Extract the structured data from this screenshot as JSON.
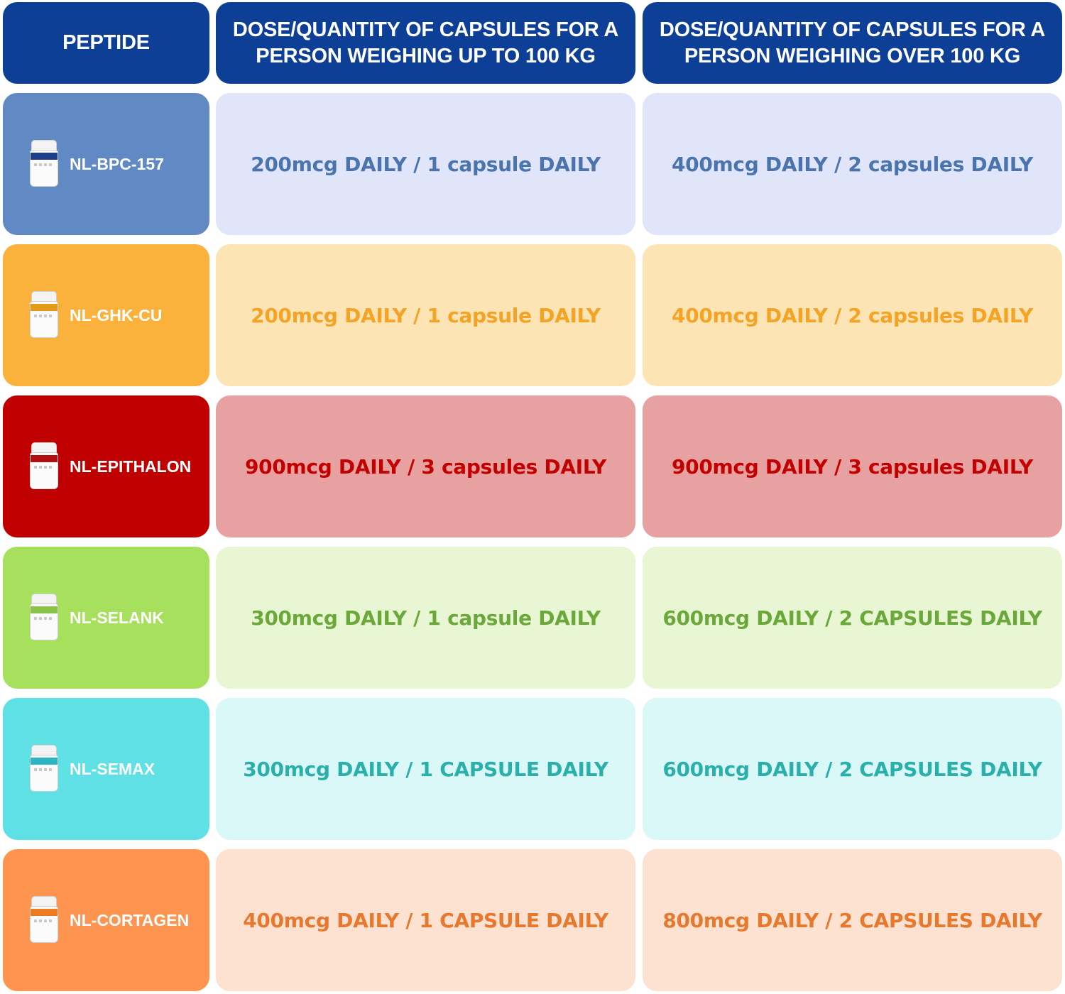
{
  "headers": {
    "peptide": "PEPTIDE",
    "dose_under_100": "DOSE/QUANTITY OF CAPSULES FOR A PERSON WEIGHING UP TO 100 KG",
    "dose_over_100": "DOSE/QUANTITY OF CAPSULES FOR A PERSON WEIGHING OVER 100 KG"
  },
  "colors": {
    "header_bg": "#0e3f96",
    "header_text": "#ffffff"
  },
  "rows": [
    {
      "peptide": "NL-BPC-157",
      "dose_under_100": "200mcg DAILY / 1 capsule DAILY",
      "dose_over_100": "400mcg DAILY / 2 capsules DAILY",
      "label_bg": "#6189c4",
      "cell_bg": "#e1e5fa",
      "text_color": "#4a74ad",
      "jar_band": "#1d3f8a"
    },
    {
      "peptide": "NL-GHK-CU",
      "dose_under_100": "200mcg DAILY / 1 capsule DAILY",
      "dose_over_100": "400mcg DAILY / 2 capsules DAILY",
      "label_bg": "#fbb23c",
      "cell_bg": "#fde4b5",
      "text_color": "#f4a324",
      "jar_band": "#e69a1a"
    },
    {
      "peptide": "NL-EPITHALON",
      "dose_under_100": "900mcg DAILY / 3 capsules DAILY",
      "dose_over_100": "900mcg DAILY / 3 capsules DAILY",
      "label_bg": "#c00000",
      "cell_bg": "#e8a1a1",
      "text_color": "#c20000",
      "jar_band": "#b01010"
    },
    {
      "peptide": "NL-SELANK",
      "dose_under_100": "300mcg DAILY / 1 capsule DAILY",
      "dose_over_100": "600mcg DAILY / 2 CAPSULES DAILY",
      "label_bg": "#a7e05c",
      "cell_bg": "#e8f6d3",
      "text_color": "#6ba83a",
      "jar_band": "#8bc34a"
    },
    {
      "peptide": "NL-SEMAX",
      "dose_under_100": "300mcg DAILY / 1 CAPSULE DAILY",
      "dose_over_100": "600mcg DAILY / 2 CAPSULES DAILY",
      "label_bg": "#5fe0e4",
      "cell_bg": "#dbf8f9",
      "text_color": "#2ab0ab",
      "jar_band": "#2bb5c0"
    },
    {
      "peptide": "NL-CORTAGEN",
      "dose_under_100": "400mcg DAILY / 1 CAPSULE DAILY",
      "dose_over_100": "800mcg DAILY / 2 CAPSULES DAILY",
      "label_bg": "#fd9450",
      "cell_bg": "#fde2d2",
      "text_color": "#e6792e",
      "jar_band": "#f07a1e"
    }
  ]
}
